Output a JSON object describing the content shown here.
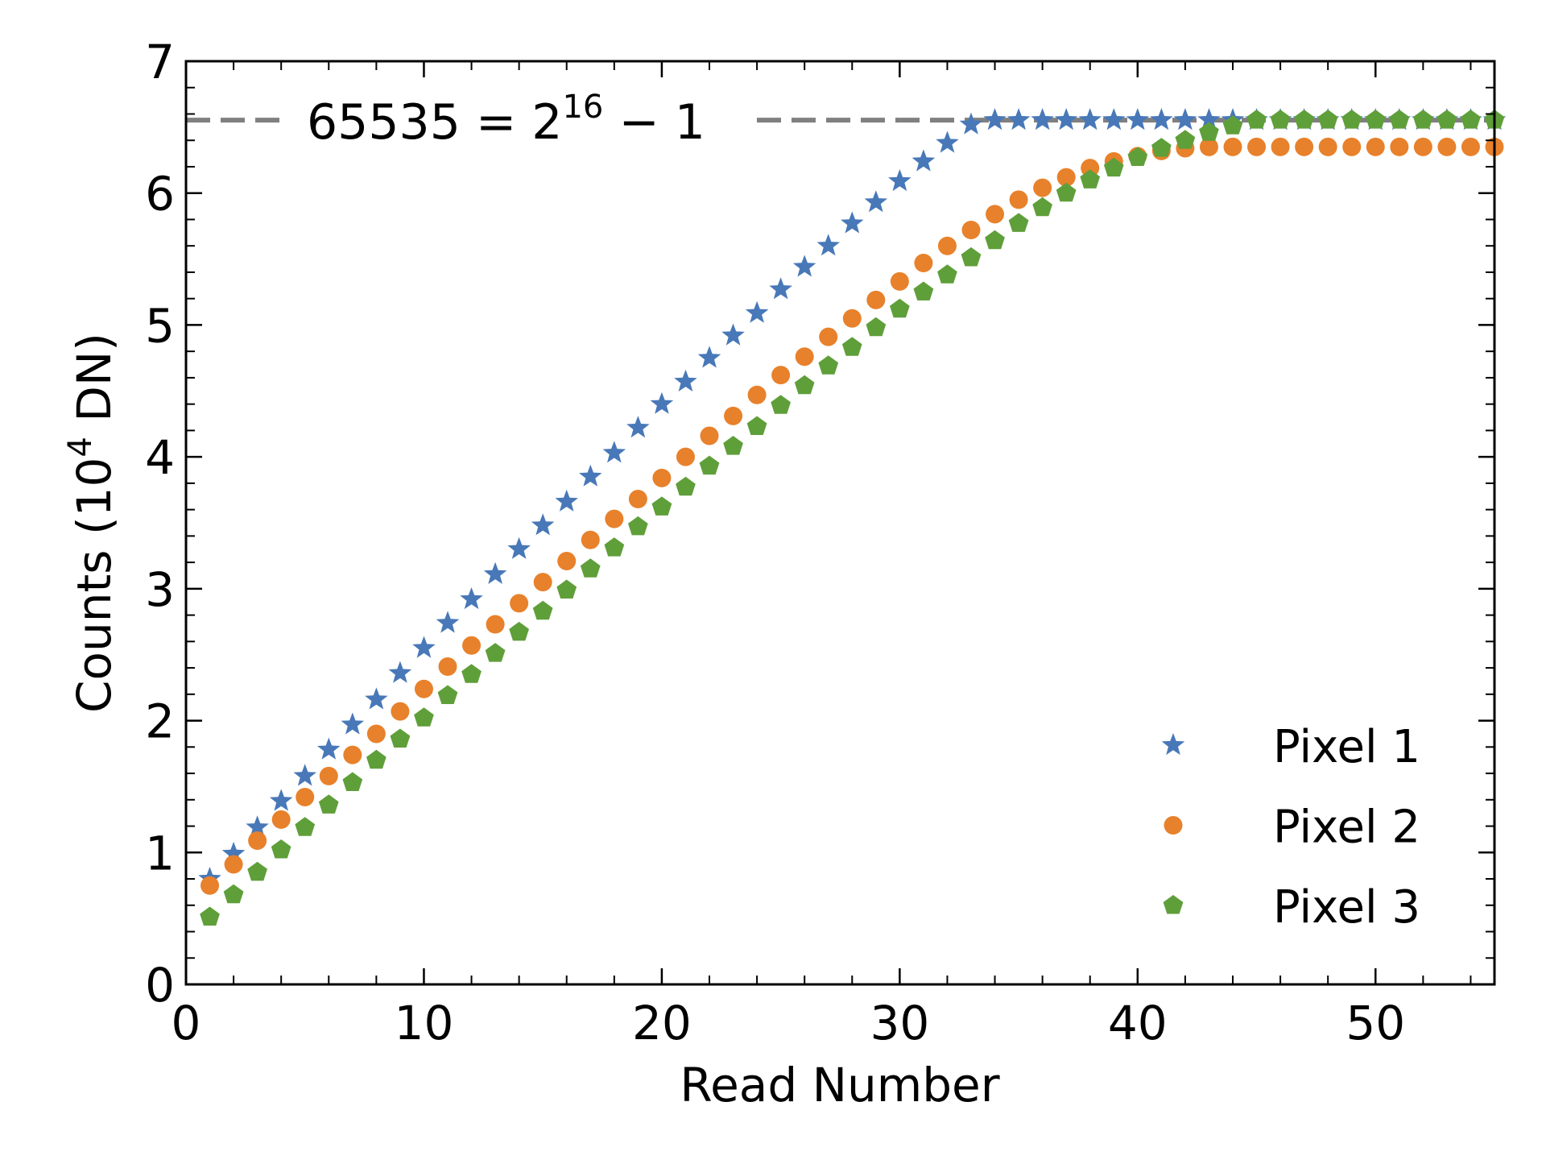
{
  "chart_data": {
    "type": "scatter",
    "title": "",
    "xlabel": "Read Number",
    "ylabel_main": "Counts (10",
    "ylabel_exp": "4",
    "ylabel_tail": " DN)",
    "xlim": [
      0,
      55
    ],
    "ylim": [
      0,
      7
    ],
    "y_unit_scale": 10000,
    "xticks": [
      "0",
      "10",
      "20",
      "30",
      "40",
      "50"
    ],
    "yticks": [
      "0",
      "1",
      "2",
      "3",
      "4",
      "5",
      "6",
      "7"
    ],
    "grid": false,
    "legend_position": "lower-right",
    "reference_line": {
      "value": 6.5535,
      "color": "#808080",
      "style": "dashed",
      "label_main": "65535 = 2",
      "label_exp": "16",
      "label_tail": " − 1"
    },
    "series": [
      {
        "name": "Pixel 1",
        "marker": "star",
        "color": "#4878b8",
        "values": [
          0.8,
          0.99,
          1.19,
          1.39,
          1.58,
          1.78,
          1.97,
          2.16,
          2.36,
          2.55,
          2.74,
          2.92,
          3.11,
          3.3,
          3.48,
          3.66,
          3.85,
          4.03,
          4.22,
          4.4,
          4.57,
          4.75,
          4.92,
          5.09,
          5.27,
          5.44,
          5.6,
          5.77,
          5.93,
          6.09,
          6.24,
          6.38,
          6.52,
          6.5535,
          6.5535,
          6.5535,
          6.5535,
          6.5535,
          6.5535,
          6.5535,
          6.5535,
          6.5535,
          6.5535,
          6.5535,
          6.5535,
          6.5535,
          6.5535,
          6.5535,
          6.5535,
          6.5535,
          6.5535,
          6.5535,
          6.5535,
          6.5535,
          6.5535
        ]
      },
      {
        "name": "Pixel 2",
        "marker": "circle",
        "color": "#e8812b",
        "values": [
          0.75,
          0.91,
          1.09,
          1.25,
          1.42,
          1.58,
          1.74,
          1.9,
          2.07,
          2.24,
          2.41,
          2.57,
          2.73,
          2.89,
          3.05,
          3.21,
          3.37,
          3.53,
          3.68,
          3.84,
          4.0,
          4.16,
          4.31,
          4.47,
          4.62,
          4.76,
          4.91,
          5.05,
          5.19,
          5.33,
          5.47,
          5.6,
          5.72,
          5.84,
          5.95,
          6.04,
          6.12,
          6.19,
          6.24,
          6.28,
          6.32,
          6.34,
          6.35,
          6.35,
          6.35,
          6.35,
          6.35,
          6.35,
          6.35,
          6.35,
          6.35,
          6.35,
          6.35,
          6.35,
          6.35
        ]
      },
      {
        "name": "Pixel 3",
        "marker": "pentagon",
        "color": "#5f9f3a",
        "values": [
          0.51,
          0.68,
          0.85,
          1.02,
          1.19,
          1.36,
          1.53,
          1.7,
          1.86,
          2.02,
          2.19,
          2.35,
          2.51,
          2.67,
          2.83,
          2.99,
          3.15,
          3.31,
          3.47,
          3.62,
          3.77,
          3.93,
          4.08,
          4.23,
          4.39,
          4.54,
          4.69,
          4.83,
          4.98,
          5.12,
          5.25,
          5.38,
          5.51,
          5.64,
          5.77,
          5.89,
          6.0,
          6.1,
          6.19,
          6.27,
          6.34,
          6.4,
          6.46,
          6.51,
          6.5535,
          6.5535,
          6.5535,
          6.5535,
          6.5535,
          6.5535,
          6.5535,
          6.5535,
          6.5535,
          6.5535,
          6.5535
        ]
      }
    ]
  }
}
